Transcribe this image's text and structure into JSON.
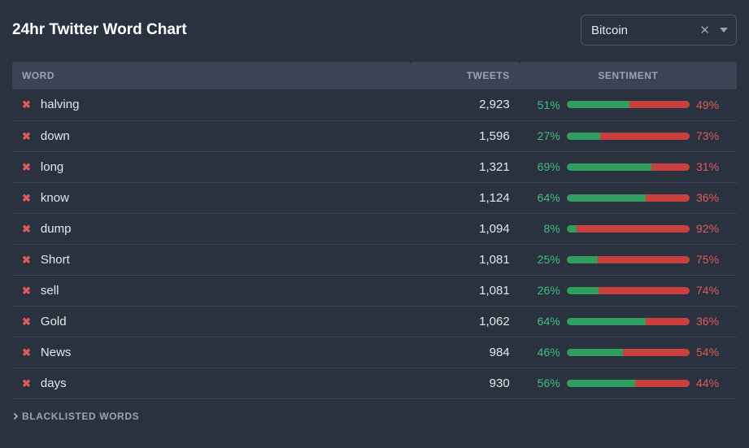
{
  "header": {
    "title": "24hr Twitter Word Chart",
    "selector": {
      "value": "Bitcoin"
    }
  },
  "columns": {
    "word": "WORD",
    "tweets": "TWEETS",
    "sentiment": "SENTIMENT"
  },
  "sentiment_colors": {
    "positive": "#2f9e5f",
    "negative": "#c9413f",
    "positive_text": "#3fbf7f",
    "negative_text": "#e05a5a"
  },
  "rows": [
    {
      "word": "halving",
      "tweets": "2,923",
      "pos": 51,
      "neg": 49
    },
    {
      "word": "down",
      "tweets": "1,596",
      "pos": 27,
      "neg": 73
    },
    {
      "word": "long",
      "tweets": "1,321",
      "pos": 69,
      "neg": 31
    },
    {
      "word": "know",
      "tweets": "1,124",
      "pos": 64,
      "neg": 36
    },
    {
      "word": "dump",
      "tweets": "1,094",
      "pos": 8,
      "neg": 92
    },
    {
      "word": "Short",
      "tweets": "1,081",
      "pos": 25,
      "neg": 75
    },
    {
      "word": "sell",
      "tweets": "1,081",
      "pos": 26,
      "neg": 74
    },
    {
      "word": "Gold",
      "tweets": "1,062",
      "pos": 64,
      "neg": 36
    },
    {
      "word": "News",
      "tweets": "984",
      "pos": 46,
      "neg": 54
    },
    {
      "word": "days",
      "tweets": "930",
      "pos": 56,
      "neg": 44
    }
  ],
  "footer": {
    "blacklisted_label": "BLACKLISTED WORDS"
  }
}
